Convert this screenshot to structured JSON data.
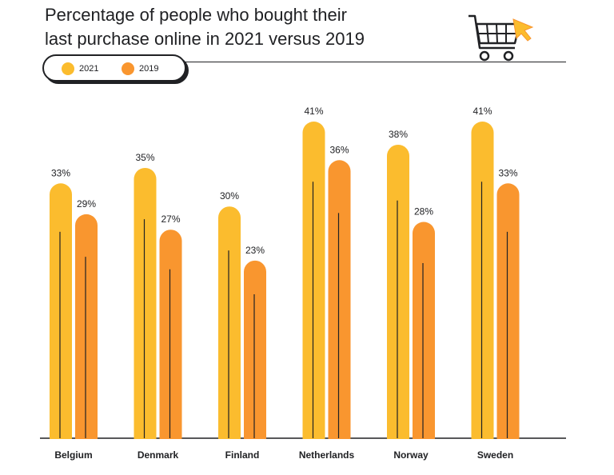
{
  "chart_data": {
    "type": "bar",
    "title_lines": [
      "Percentage of people who bought their",
      "last purchase online in 2021 versus 2019"
    ],
    "xlabel": "",
    "ylabel": "",
    "unit": "%",
    "categories": [
      "Belgium",
      "Denmark",
      "Finland",
      "Netherlands",
      "Norway",
      "Sweden"
    ],
    "series": [
      {
        "name": "2021",
        "color": "#FBBC2E",
        "values": [
          33,
          35,
          30,
          41,
          38,
          41
        ]
      },
      {
        "name": "2019",
        "color": "#F9962F",
        "values": [
          29,
          27,
          23,
          36,
          28,
          33
        ]
      }
    ],
    "ylim": [
      0,
      41
    ],
    "grid": false,
    "legend_position": "top-left",
    "decoration": "shopping-cart-with-cursor"
  }
}
